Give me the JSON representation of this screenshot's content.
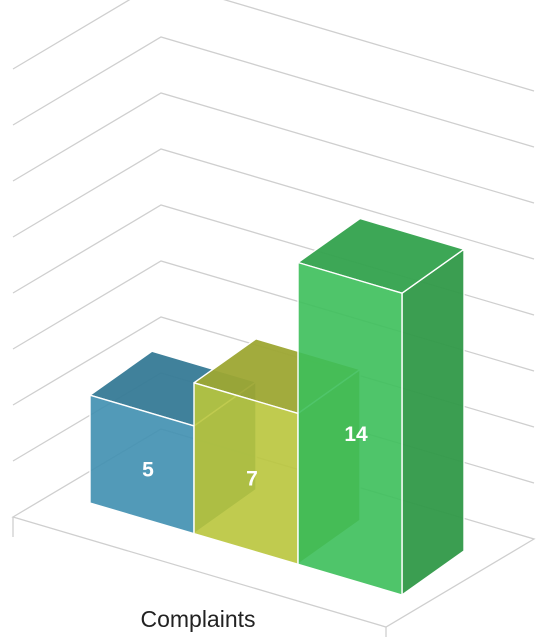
{
  "chart_data": {
    "type": "bar",
    "style": "3d",
    "categories": [
      "Complaints"
    ],
    "series": [
      {
        "values": [
          5
        ],
        "color": "#3f8fb0"
      },
      {
        "values": [
          7
        ],
        "color": "#b9c53c"
      },
      {
        "values": [
          14
        ],
        "color": "#3cbf5a"
      }
    ],
    "xlabel": "Complaints",
    "ylim": [
      0,
      16
    ],
    "grid": true,
    "legend": "none",
    "data_labels": true
  }
}
